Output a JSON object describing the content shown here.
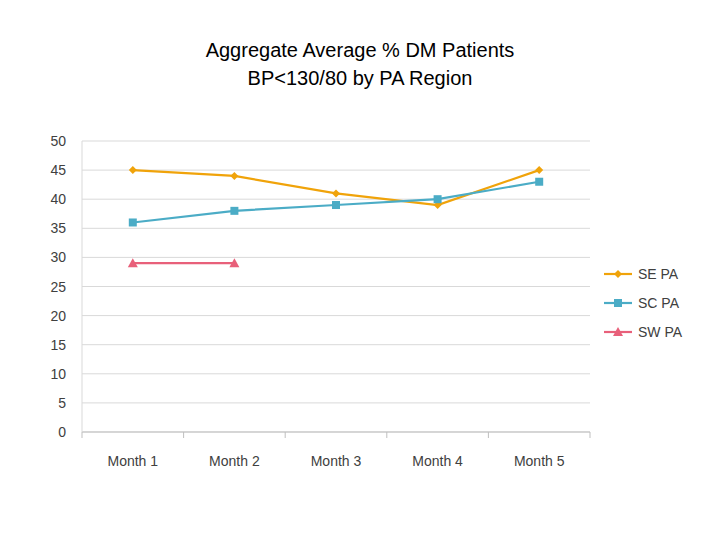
{
  "chart_data": {
    "type": "line",
    "title": [
      "Aggregate Average % DM Patients",
      "BP<130/80 by PA Region"
    ],
    "categories": [
      "Month 1",
      "Month 2",
      "Month 3",
      "Month 4",
      "Month 5"
    ],
    "series": [
      {
        "name": "SE PA",
        "color": "#f0a30a",
        "marker": "diamond",
        "values": [
          45,
          44,
          41,
          39,
          45
        ]
      },
      {
        "name": "SC PA",
        "color": "#4bacc6",
        "marker": "square",
        "values": [
          36,
          38,
          39,
          40,
          43
        ]
      },
      {
        "name": "SW PA",
        "color": "#e8607a",
        "marker": "triangle",
        "values": [
          29,
          29,
          null,
          null,
          null
        ]
      }
    ],
    "ylim": [
      0,
      50
    ],
    "yticks": [
      0,
      5,
      10,
      15,
      20,
      25,
      30,
      35,
      40,
      45,
      50
    ],
    "grid": true,
    "legend": "right"
  }
}
